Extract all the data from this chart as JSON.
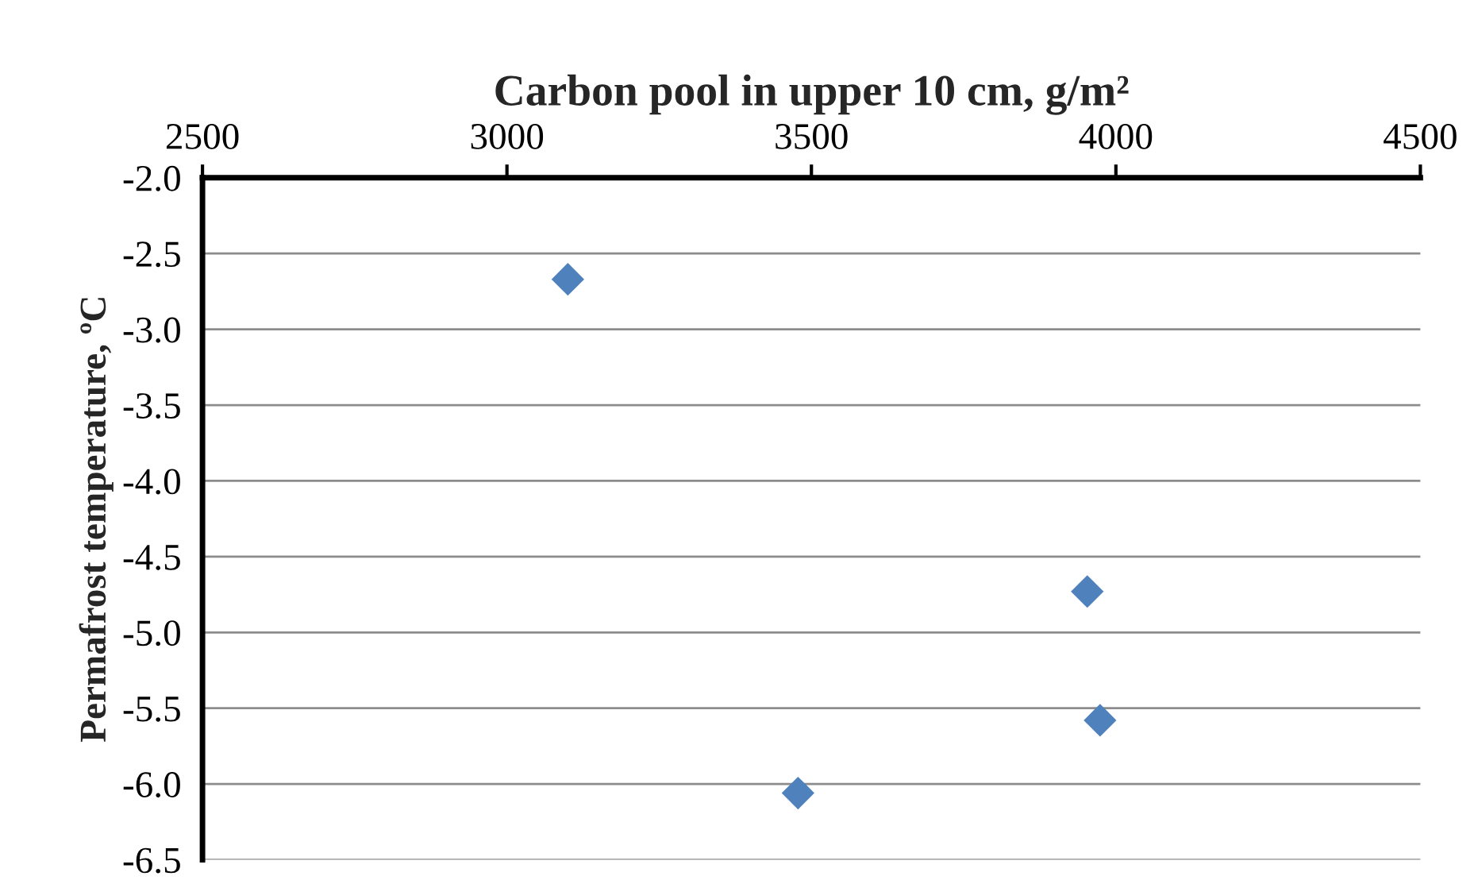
{
  "chart_data": {
    "type": "scatter",
    "xlabel": "Carbon pool in upper 10 cm, g/m²",
    "ylabel": "Permafrost temperature, ºC",
    "x": [
      3100,
      3953,
      3974,
      3478
    ],
    "values": [
      -2.67,
      -4.73,
      -5.58,
      -6.06
    ],
    "color": "#4f81bd",
    "marker": "diamond",
    "xlim": [
      2500,
      4500
    ],
    "xticks": [
      2500,
      3000,
      3500,
      4000,
      4500
    ],
    "ylim": [
      -6.5,
      -2.0
    ],
    "yticks": [
      {
        "value": -2,
        "label": "-2.0"
      },
      -2.5,
      {
        "value": -3,
        "label": "-3.0"
      },
      -3.5,
      {
        "value": -4,
        "label": "-4.0"
      },
      -4.5,
      {
        "value": -5,
        "label": "-5.0"
      },
      -5.5,
      {
        "value": -6,
        "label": "-6.0"
      },
      -6.5
    ],
    "grid": "y"
  }
}
